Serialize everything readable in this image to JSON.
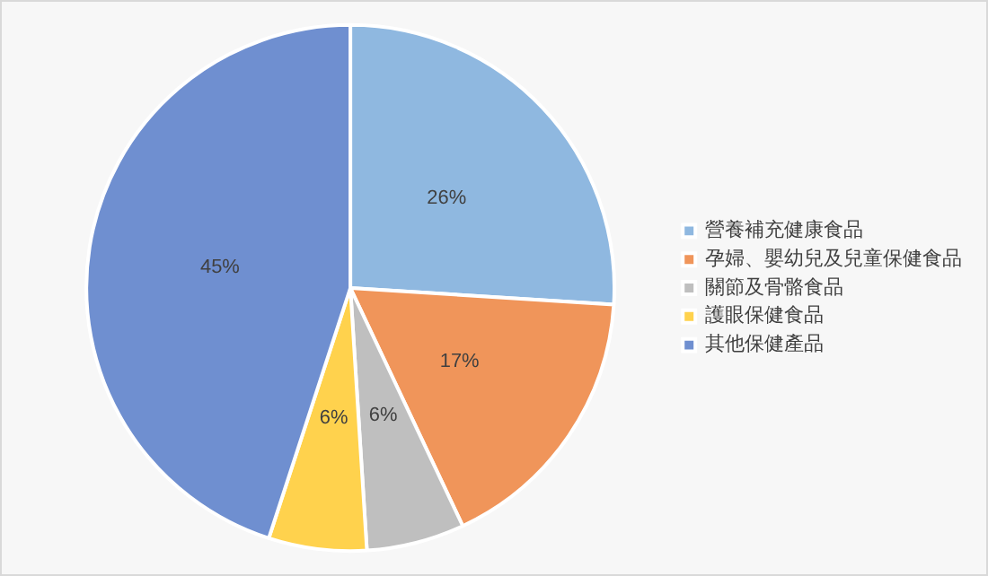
{
  "chart_data": {
    "type": "pie",
    "categories": [
      "營養補充健康食品",
      "孕婦、嬰幼兒及兒童保健食品",
      "關節及骨骼食品",
      "護眼保健食品",
      "其他保健產品"
    ],
    "values": [
      26,
      17,
      6,
      6,
      45
    ],
    "colors": [
      "#8fb8e0",
      "#f0955a",
      "#bfbfbf",
      "#ffd24d",
      "#6f8fd0"
    ],
    "value_labels": [
      "26%",
      "17%",
      "6%",
      "6%",
      "45%"
    ],
    "legend": "right"
  }
}
